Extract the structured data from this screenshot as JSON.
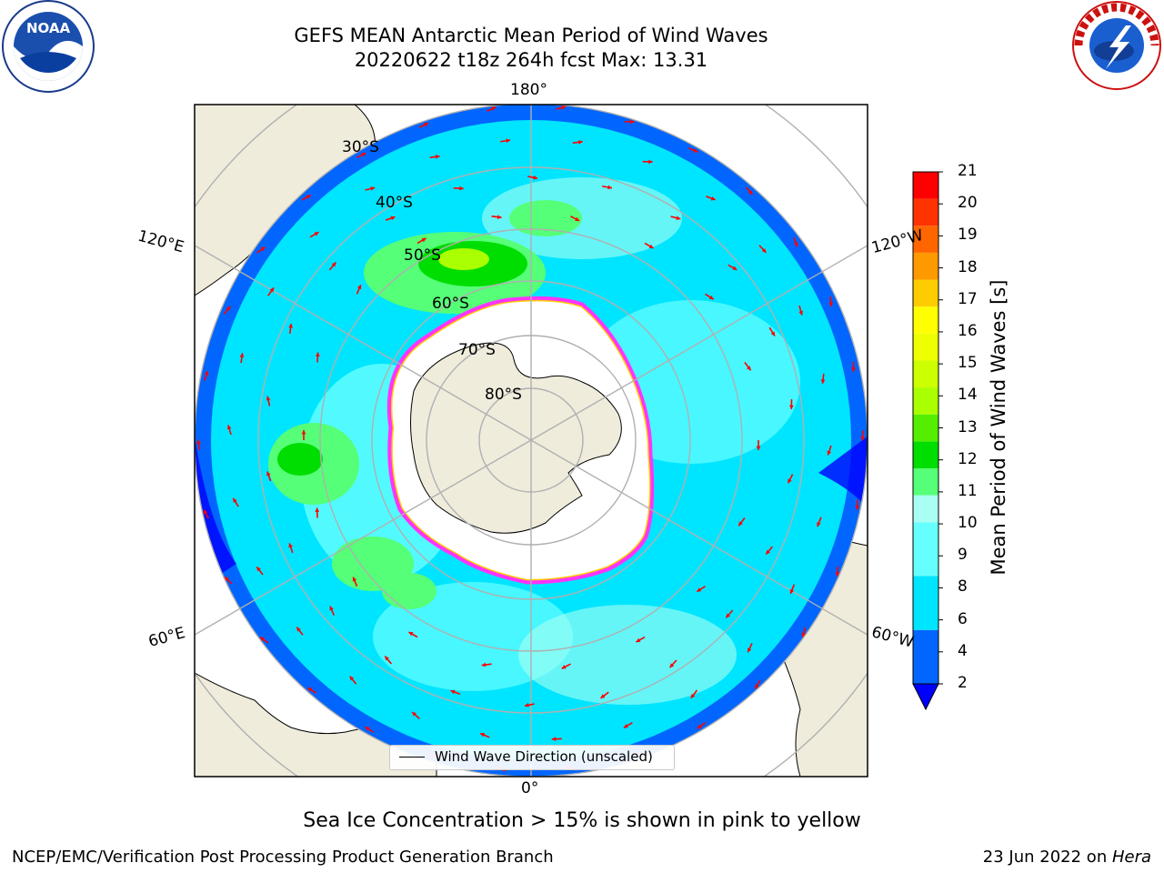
{
  "title": {
    "line1": "GEFS MEAN Antarctic Mean Period of Wind Waves",
    "line2": "20220622 t18z 264h fcst   Max: 13.31"
  },
  "map": {
    "projection": "south-polar-stereographic",
    "longitude_labels": [
      "180°",
      "120°E",
      "120°W",
      "60°E",
      "60°W",
      "0°"
    ],
    "latitude_labels": [
      "30°S",
      "40°S",
      "50°S",
      "60°S",
      "70°S",
      "80°S"
    ],
    "colors": {
      "land": "#efecdc",
      "sea_ice": "#ffffff",
      "sea_ice_edge": [
        "#ff33ff",
        "#ff9999",
        "#ffcc00"
      ],
      "gridline": "#b0b0b0",
      "arrows": "#ff0000"
    },
    "arrow_description": "Wind Wave Direction (unscaled)"
  },
  "legend": {
    "label": "Wind Wave Direction (unscaled)"
  },
  "colorbar": {
    "title": "Mean Period of Wind Waves [s]",
    "ticks": [
      "21",
      "20",
      "19",
      "18",
      "17",
      "16",
      "15",
      "14",
      "13",
      "12",
      "11",
      "10",
      "9",
      "8",
      "6",
      "4",
      "2"
    ],
    "levels": [
      {
        "min": 0,
        "max": 2,
        "color": "#0000ff"
      },
      {
        "min": 2,
        "max": 4,
        "color": "#0066ff"
      },
      {
        "min": 4,
        "max": 6,
        "color": "#00e5ff"
      },
      {
        "min": 6,
        "max": 8,
        "color": "#66ffff"
      },
      {
        "min": 8,
        "max": 9,
        "color": "#a8fff2"
      },
      {
        "min": 9,
        "max": 10,
        "color": "#55ff77"
      },
      {
        "min": 10,
        "max": 11,
        "color": "#00dd00"
      },
      {
        "min": 11,
        "max": 12,
        "color": "#55ee00"
      },
      {
        "min": 12,
        "max": 13,
        "color": "#aaff00"
      },
      {
        "min": 13,
        "max": 14,
        "color": "#ccff00"
      },
      {
        "min": 14,
        "max": 15,
        "color": "#eeff00"
      },
      {
        "min": 15,
        "max": 16,
        "color": "#ffff00"
      },
      {
        "min": 16,
        "max": 17,
        "color": "#ffcc00"
      },
      {
        "min": 17,
        "max": 18,
        "color": "#ff9900"
      },
      {
        "min": 18,
        "max": 19,
        "color": "#ff6600"
      },
      {
        "min": 19,
        "max": 20,
        "color": "#ff3300"
      },
      {
        "min": 20,
        "max": 21,
        "color": "#ff0000"
      }
    ]
  },
  "caption": "Sea Ice Concentration > 15% is shown in pink to yellow",
  "footer": {
    "left": "NCEP/EMC/Verification Post Processing Product Generation Branch",
    "right_date": "23 Jun 2022 on ",
    "right_host": "Hera"
  },
  "logos": {
    "noaa": "NOAA",
    "nws": "NATIONAL WEATHER SERVICE"
  }
}
